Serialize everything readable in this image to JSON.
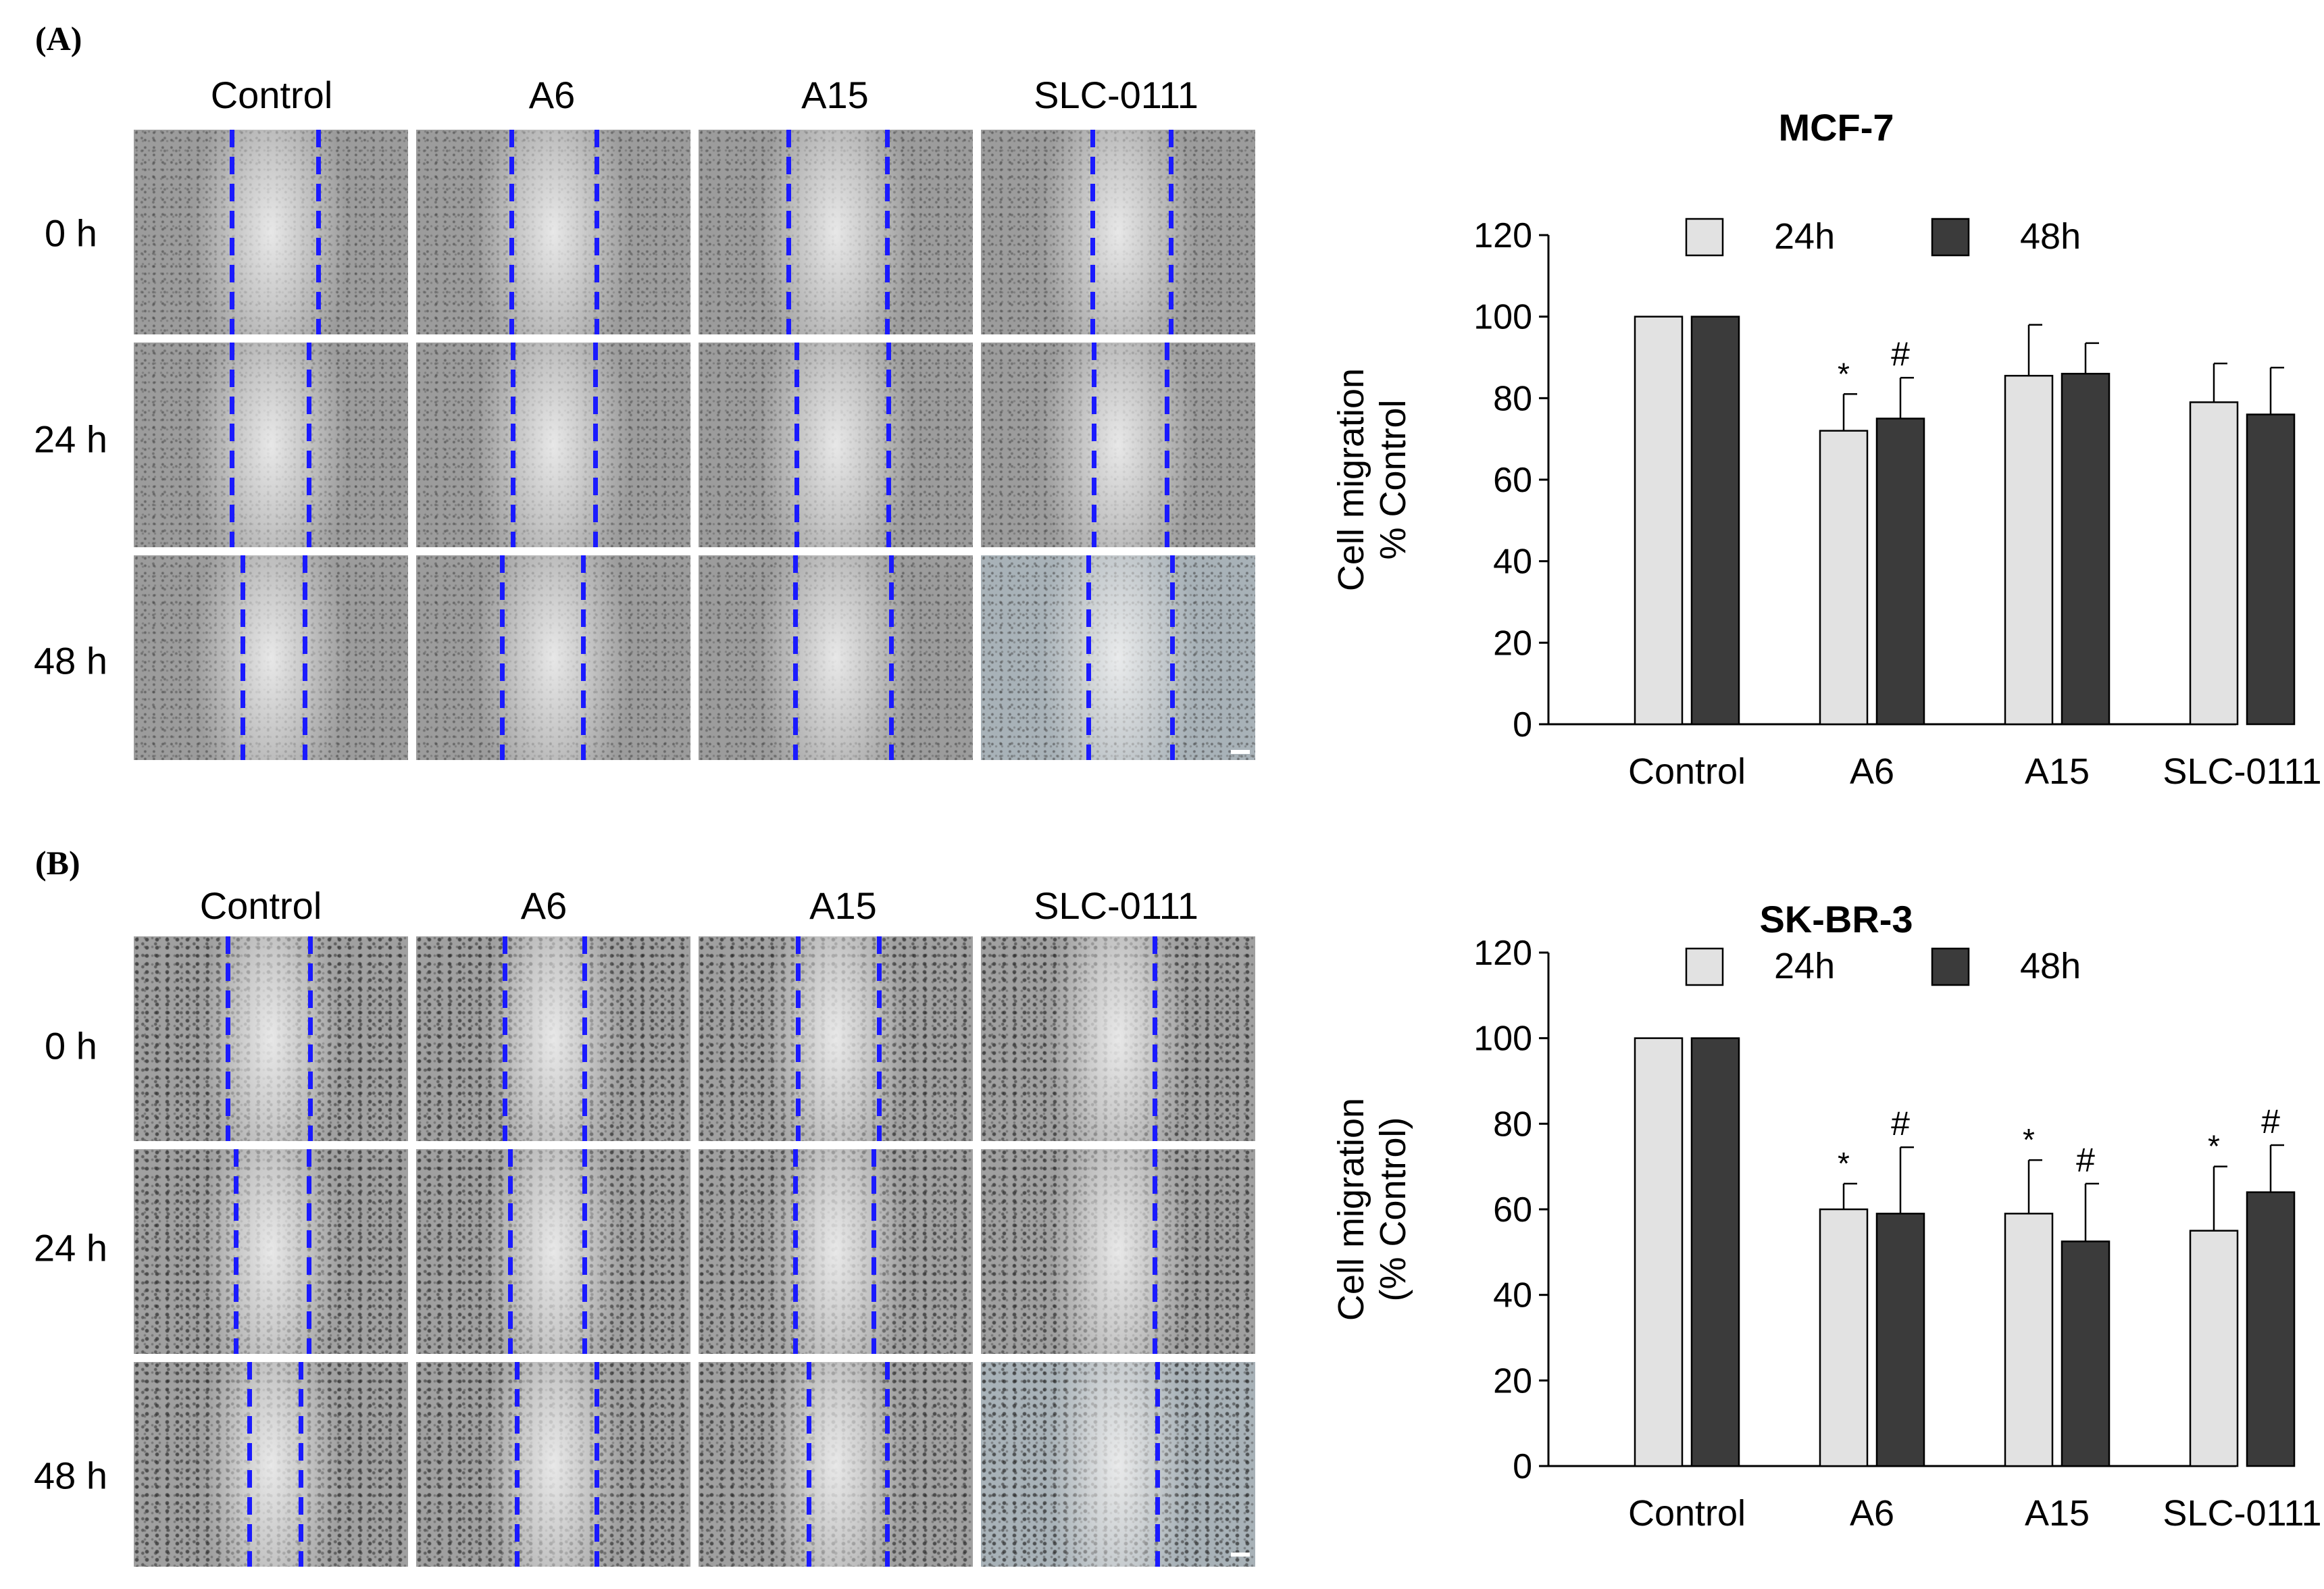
{
  "figure": {
    "panels": [
      {
        "label": "(A)",
        "cell_line": "MCF-7",
        "columns": [
          "Control",
          "A6",
          "A15",
          "SLC-0111"
        ],
        "rows": [
          "0 h",
          "24 h",
          "48 h"
        ]
      },
      {
        "label": "(B)",
        "cell_line": "SK-BR-3",
        "columns": [
          "Control",
          "A6",
          "A15",
          "SLC-0111"
        ],
        "rows": [
          "0 h",
          "24 h",
          "48 h"
        ]
      }
    ]
  },
  "chart_data": [
    {
      "type": "bar",
      "title": "MCF-7",
      "categories": [
        "Control",
        "A6",
        "A15",
        "SLC-0111"
      ],
      "ylabel": [
        "Cell migration",
        "% Control"
      ],
      "ylim": [
        0,
        120
      ],
      "yticks": [
        "0",
        "20",
        "40",
        "60",
        "80",
        "100",
        "120"
      ],
      "legend": [
        "24h",
        "48h"
      ],
      "colors": [
        "#e2e2e2",
        "#3b3b3b"
      ],
      "series": [
        {
          "name": "24h",
          "values": [
            100,
            72,
            85.5,
            79
          ],
          "errors": [
            0,
            9,
            12.5,
            9.5
          ],
          "marks": [
            "",
            "*",
            "",
            ""
          ]
        },
        {
          "name": "48h",
          "values": [
            100,
            75,
            86,
            76
          ],
          "errors": [
            0,
            10,
            7.5,
            11.5
          ],
          "marks": [
            "",
            "#",
            "",
            ""
          ]
        }
      ]
    },
    {
      "type": "bar",
      "title": "SK-BR-3",
      "categories": [
        "Control",
        "A6",
        "A15",
        "SLC-0111"
      ],
      "ylabel": [
        "Cell migration",
        "(% Control)"
      ],
      "ylim": [
        0,
        120
      ],
      "yticks": [
        "0",
        "20",
        "40",
        "60",
        "80",
        "100",
        "120"
      ],
      "legend": [
        "24h",
        "48h"
      ],
      "colors": [
        "#e2e2e2",
        "#3b3b3b"
      ],
      "series": [
        {
          "name": "24h",
          "values": [
            100,
            60,
            59,
            55
          ],
          "errors": [
            0,
            6,
            12.5,
            15
          ],
          "marks": [
            "",
            "*",
            "*",
            "*"
          ]
        },
        {
          "name": "48h",
          "values": [
            100,
            59,
            52.5,
            64
          ],
          "errors": [
            0,
            15.5,
            13.5,
            11
          ],
          "marks": [
            "",
            "#",
            "#",
            "#"
          ]
        }
      ]
    }
  ]
}
